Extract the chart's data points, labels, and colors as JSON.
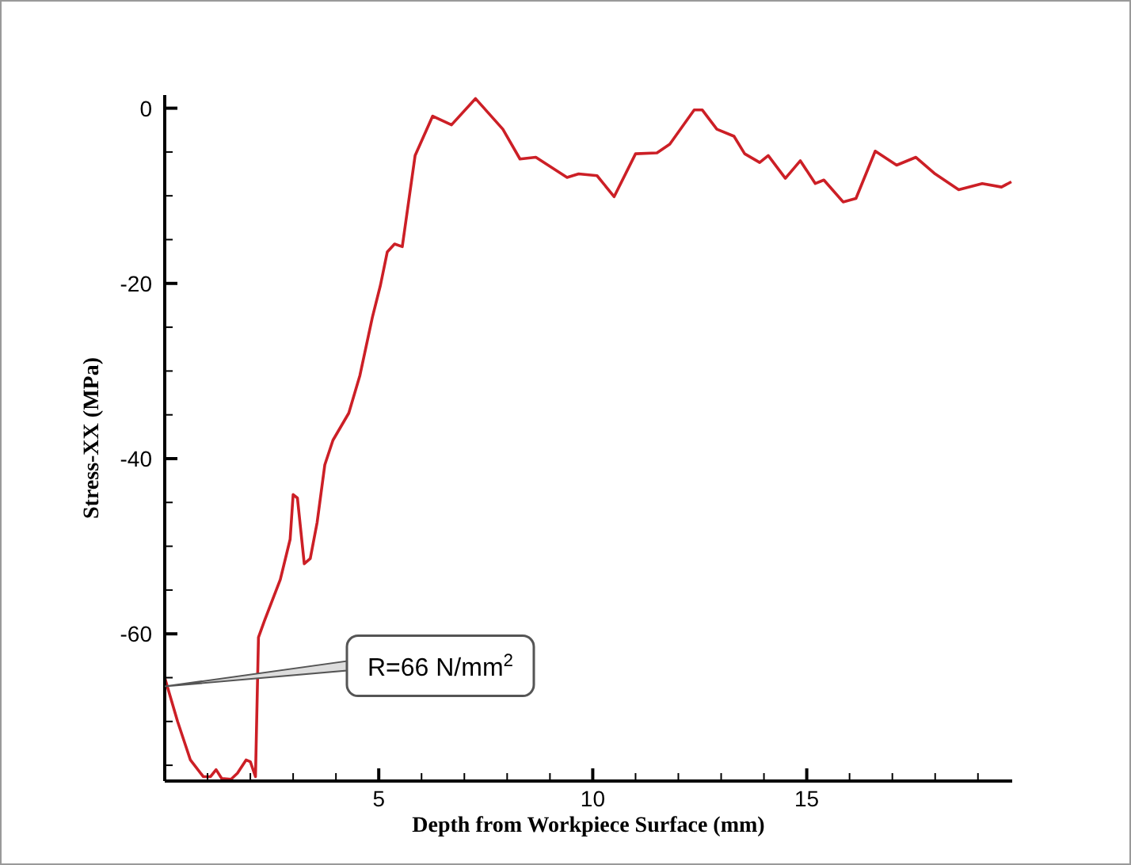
{
  "chart_data": {
    "type": "line",
    "xlabel": "Depth from Workpiece Surface (mm)",
    "ylabel": "Stress-XX (MPa)",
    "xlim": [
      0,
      19.8
    ],
    "ylim": [
      -76.8,
      1.5
    ],
    "xticks": [
      {
        "value": 1,
        "label": null
      },
      {
        "value": 2,
        "label": null
      },
      {
        "value": 3,
        "label": null
      },
      {
        "value": 4,
        "label": null
      },
      5,
      {
        "value": 6,
        "label": null
      },
      {
        "value": 7,
        "label": null
      },
      {
        "value": 8,
        "label": null
      },
      {
        "value": 9,
        "label": null
      },
      10,
      {
        "value": 11,
        "label": null
      },
      {
        "value": 12,
        "label": null
      },
      {
        "value": 13,
        "label": null
      },
      {
        "value": 14,
        "label": null
      },
      15,
      {
        "value": 16,
        "label": null
      },
      {
        "value": 17,
        "label": null
      },
      {
        "value": 18,
        "label": null
      },
      {
        "value": 19,
        "label": null
      }
    ],
    "yticks": [
      {
        "value": -75,
        "label": null
      },
      {
        "value": -70,
        "label": null
      },
      {
        "value": -65,
        "label": null
      },
      -60,
      {
        "value": -55,
        "label": null
      },
      {
        "value": -50,
        "label": null
      },
      {
        "value": -45,
        "label": null
      },
      -40,
      {
        "value": -35,
        "label": null
      },
      {
        "value": -30,
        "label": null
      },
      {
        "value": -25,
        "label": null
      },
      -20,
      {
        "value": -15,
        "label": null
      },
      {
        "value": -10,
        "label": null
      },
      {
        "value": -5,
        "label": null
      },
      0
    ],
    "grid": false,
    "marker": "none",
    "line_style": "solid",
    "series": [
      {
        "color": "#cc1f26",
        "x": [
          0,
          0.3,
          0.6,
          0.9,
          1.07,
          1.2,
          1.33,
          1.55,
          1.7,
          1.9,
          2.0,
          2.12,
          2.19,
          2.33,
          2.7,
          2.93,
          3.0,
          3.1,
          3.26,
          3.4,
          3.56,
          3.74,
          3.93,
          4.3,
          4.56,
          4.85,
          5.04,
          5.2,
          5.37,
          5.55,
          5.85,
          6.26,
          6.7,
          7.26,
          7.9,
          8.3,
          8.67,
          9.4,
          9.67,
          10.1,
          10.5,
          11.0,
          11.5,
          11.8,
          12.37,
          12.56,
          12.9,
          13.3,
          13.55,
          13.9,
          14.1,
          14.5,
          14.85,
          15.2,
          15.4,
          15.85,
          16.15,
          16.6,
          17.1,
          17.55,
          18.0,
          18.55,
          19.1,
          19.55,
          19.78
        ],
        "values": [
          -65,
          -70,
          -74.4,
          -76.3,
          -76.3,
          -75.5,
          -76.5,
          -76.6,
          -75.9,
          -74.4,
          -74.6,
          -76.3,
          -60.4,
          -58.5,
          -53.8,
          -49.2,
          -44.1,
          -44.5,
          -52,
          -51.4,
          -47.3,
          -40.7,
          -37.9,
          -34.8,
          -30.5,
          -23.9,
          -20.2,
          -16.4,
          -15.5,
          -15.8,
          -5.4,
          -0.9,
          -1.9,
          1.1,
          -2.4,
          -5.8,
          -5.6,
          -7.9,
          -7.5,
          -7.7,
          -10.1,
          -5.2,
          -5.1,
          -4.1,
          -0.2,
          -0.2,
          -2.4,
          -3.2,
          -5.2,
          -6.2,
          -5.4,
          -8,
          -6,
          -8.6,
          -8.2,
          -10.7,
          -10.3,
          -4.9,
          -6.5,
          -5.6,
          -7.5,
          -9.3,
          -8.6,
          -9,
          -8.4
        ]
      }
    ],
    "annotations": [
      {
        "text": "R=66 N/mm$^{2}$",
        "x": 0,
        "y": -66
      }
    ]
  }
}
